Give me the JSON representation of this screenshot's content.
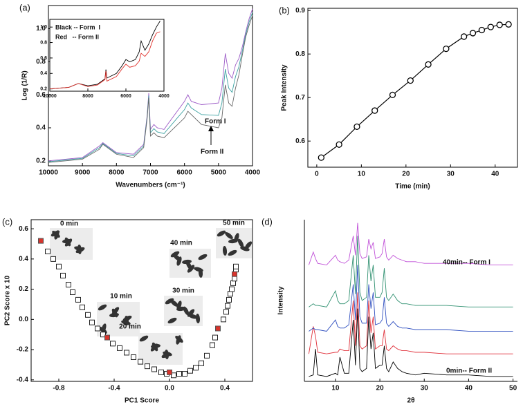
{
  "chart_data": [
    {
      "type": "line",
      "label": "(a)",
      "x_label": "Wavenumbers (cm⁻¹)",
      "y_label": "Log (1/R)",
      "x": [
        10000,
        9500,
        9000,
        8500,
        8400,
        8000,
        7500,
        7200,
        7100,
        7050,
        7000,
        6900,
        6800,
        6600,
        6500,
        6000,
        5900,
        5800,
        5500,
        5000,
        4900,
        4800,
        4700,
        4600,
        4500,
        4400,
        4300,
        4200,
        4100,
        4000
      ],
      "series": [
        {
          "color": "#9b59c6",
          "values": [
            0.2,
            0.21,
            0.22,
            0.29,
            0.31,
            0.25,
            0.24,
            0.3,
            0.47,
            0.61,
            0.39,
            0.42,
            0.4,
            0.39,
            0.42,
            0.56,
            0.6,
            0.56,
            0.54,
            0.55,
            0.64,
            0.85,
            0.73,
            0.7,
            0.78,
            0.82,
            0.89,
            0.98,
            1.06,
            1.12
          ]
        },
        {
          "color": "#3aa0a0",
          "values": [
            0.195,
            0.205,
            0.215,
            0.28,
            0.305,
            0.245,
            0.23,
            0.29,
            0.46,
            0.595,
            0.37,
            0.395,
            0.375,
            0.365,
            0.39,
            0.51,
            0.55,
            0.52,
            0.48,
            0.475,
            0.55,
            0.755,
            0.64,
            0.615,
            0.71,
            0.77,
            0.865,
            0.965,
            1.04,
            1.1
          ]
        },
        {
          "color": "#666666",
          "values": [
            0.19,
            0.2,
            0.21,
            0.27,
            0.3,
            0.24,
            0.22,
            0.28,
            0.45,
            0.58,
            0.35,
            0.37,
            0.35,
            0.34,
            0.36,
            0.46,
            0.5,
            0.48,
            0.42,
            0.4,
            0.46,
            0.66,
            0.55,
            0.53,
            0.64,
            0.72,
            0.84,
            0.95,
            1.02,
            1.08
          ]
        }
      ],
      "annotations": [
        "Form I",
        "Form II"
      ],
      "xlim": [
        10000,
        4000
      ],
      "ylim": [
        0.17,
        1.14
      ],
      "xticks": [
        10000,
        9000,
        8000,
        7000,
        6000,
        5000,
        4000
      ],
      "yticks": [
        0.2,
        0.4,
        0.6,
        0.8,
        {
          "value": 1,
          "label": "1.0"
        }
      ]
    },
    {
      "type": "line",
      "x": [
        10000,
        9000,
        8500,
        8000,
        7500,
        7100,
        7050,
        7000,
        6500,
        6200,
        6000,
        5800,
        5500,
        5300,
        5200,
        5000,
        4800,
        4600,
        4400,
        4200
      ],
      "series": [
        {
          "name": "Black -- Form  I",
          "color": "#000000",
          "values": [
            0.2,
            0.22,
            0.27,
            0.24,
            0.26,
            0.33,
            0.45,
            0.34,
            0.4,
            0.5,
            0.58,
            0.55,
            0.58,
            0.68,
            0.82,
            0.7,
            0.78,
            0.9,
            1.0,
            1.08
          ]
        },
        {
          "name": "Red   -- Form II",
          "color": "#e0302a",
          "values": [
            0.2,
            0.22,
            0.27,
            0.23,
            0.25,
            0.32,
            0.43,
            0.3,
            0.36,
            0.46,
            0.52,
            0.48,
            0.5,
            0.56,
            0.66,
            0.62,
            0.68,
            0.82,
            0.92,
            0.94
          ]
        }
      ],
      "xlim": [
        10000,
        4000
      ],
      "ylim": [
        0.17,
        1.1
      ],
      "xticks": [
        10000,
        8000,
        6000,
        4000
      ],
      "yticks": [
        0.2,
        0.4,
        0.6,
        0.8,
        {
          "value": 1,
          "label": "1.0"
        }
      ]
    },
    {
      "type": "line",
      "label": "(b)",
      "x_label": "Time (min)",
      "y_label": "Peak Intensity",
      "markers": true,
      "x": [
        1,
        5,
        9,
        13,
        17,
        21,
        25,
        29,
        33,
        35,
        37,
        39,
        41,
        43
      ],
      "series": [
        {
          "color": "#000000",
          "values": [
            0.562,
            0.592,
            0.633,
            0.67,
            0.706,
            0.739,
            0.776,
            0.812,
            0.84,
            0.848,
            0.855,
            0.862,
            0.867,
            0.868
          ]
        }
      ],
      "xlim": [
        -2,
        45
      ],
      "ylim": [
        0.54,
        0.905
      ],
      "xticks": [
        0,
        10,
        20,
        30,
        40
      ],
      "yticks": [
        0.6,
        0.7,
        0.8,
        0.9
      ]
    },
    {
      "type": "scatter",
      "label": "(c)",
      "x_label": "PC1 Score",
      "y_label": "PC2 Score x 10",
      "series": [
        {
          "color": "#222222",
          "filled": false,
          "x": [
            -0.88,
            -0.84,
            -0.8,
            -0.77,
            -0.73,
            -0.7,
            -0.66,
            -0.63,
            -0.59,
            -0.56,
            -0.52,
            -0.48,
            -0.41,
            -0.36,
            -0.31,
            -0.26,
            -0.21,
            -0.16,
            -0.11,
            -0.06,
            -0.02,
            0.03,
            0.07,
            0.11,
            0.15,
            0.19,
            0.23,
            0.27,
            0.31,
            0.33,
            0.39,
            0.41,
            0.42,
            0.43,
            0.44,
            0.45,
            0.46,
            0.47,
            0.48,
            0.48
          ],
          "y": [
            0.45,
            0.4,
            0.35,
            0.29,
            0.23,
            0.18,
            0.13,
            0.08,
            0.03,
            -0.02,
            -0.06,
            -0.1,
            -0.16,
            -0.19,
            -0.22,
            -0.25,
            -0.28,
            -0.31,
            -0.33,
            -0.35,
            -0.36,
            -0.37,
            -0.36,
            -0.36,
            -0.34,
            -0.32,
            -0.29,
            -0.24,
            -0.17,
            -0.12,
            0.0,
            0.05,
            0.09,
            0.13,
            0.17,
            0.2,
            0.24,
            0.27,
            0.33,
            0.35
          ]
        },
        {
          "color": "#d8342c",
          "filled": true,
          "x": [
            -0.93,
            -0.45,
            0.0,
            0.35,
            0.47
          ],
          "y": [
            0.52,
            -0.12,
            -0.35,
            -0.06,
            0.3
          ]
        }
      ],
      "annotations": [
        "0 min",
        "10 min",
        "20 min",
        "30 min",
        "40 min",
        "50 min"
      ],
      "xlim": [
        -1.0,
        0.6
      ],
      "ylim": [
        -0.41,
        0.66
      ],
      "xticks": [
        -0.8,
        -0.4,
        {
          "value": 0,
          "label": "0.0"
        },
        0.4
      ],
      "yticks": [
        -0.4,
        -0.2,
        {
          "value": 0,
          "label": "0.0"
        },
        0.2,
        0.4,
        0.6
      ]
    },
    {
      "type": "line",
      "label": "(d)",
      "x_label": "2θ",
      "y_label": "Intensity",
      "x": [
        4,
        5,
        5.5,
        6,
        8,
        10,
        10.5,
        11,
        12,
        13,
        14,
        14.5,
        15,
        15.5,
        16,
        17,
        17.5,
        18,
        18.5,
        19,
        20,
        20.5,
        21,
        21.5,
        22,
        23,
        24,
        25,
        26,
        28,
        30,
        35,
        40,
        45,
        50
      ],
      "series": [
        {
          "color": "#000000",
          "values": [
            3,
            4,
            20,
            4,
            3,
            5,
            4,
            15,
            5,
            5,
            38,
            10,
            45,
            8,
            6,
            8,
            40,
            20,
            30,
            8,
            10,
            10,
            22,
            8,
            6,
            12,
            8,
            6,
            5,
            4,
            5,
            4,
            4,
            3,
            3
          ]
        },
        {
          "color": "#e0303a",
          "values": [
            17,
            34,
            28,
            18,
            17,
            18,
            18,
            20,
            19,
            19,
            50,
            22,
            55,
            22,
            20,
            22,
            50,
            30,
            40,
            20,
            22,
            22,
            32,
            20,
            19,
            22,
            20,
            19,
            19,
            18,
            18,
            17,
            17,
            17,
            17
          ]
        },
        {
          "color": "#3050c0",
          "values": [
            31,
            33,
            32,
            32,
            31,
            38,
            34,
            33,
            33,
            35,
            60,
            38,
            72,
            40,
            36,
            36,
            60,
            45,
            55,
            35,
            36,
            38,
            52,
            36,
            34,
            37,
            34,
            33,
            33,
            32,
            32,
            32,
            31,
            31,
            31
          ]
        },
        {
          "color": "#2f9070",
          "values": [
            46,
            48,
            47,
            47,
            46,
            56,
            50,
            48,
            48,
            50,
            78,
            54,
            90,
            55,
            50,
            52,
            78,
            62,
            72,
            52,
            52,
            55,
            70,
            52,
            50,
            54,
            50,
            48,
            48,
            47,
            47,
            47,
            46,
            46,
            46
          ]
        },
        {
          "color": "#c050d8",
          "values": [
            72,
            80,
            76,
            73,
            72,
            78,
            75,
            74,
            73,
            75,
            90,
            78,
            98,
            79,
            76,
            77,
            88,
            82,
            86,
            76,
            77,
            79,
            88,
            77,
            75,
            78,
            76,
            75,
            74,
            74,
            73,
            73,
            73,
            72,
            72
          ]
        }
      ],
      "annotations": [
        "40min-- Form I",
        "0min-- Form II"
      ],
      "xlim": [
        3,
        51
      ],
      "ylim": [
        0,
        100
      ],
      "xticks": [
        10,
        20,
        30,
        40,
        50
      ]
    }
  ]
}
